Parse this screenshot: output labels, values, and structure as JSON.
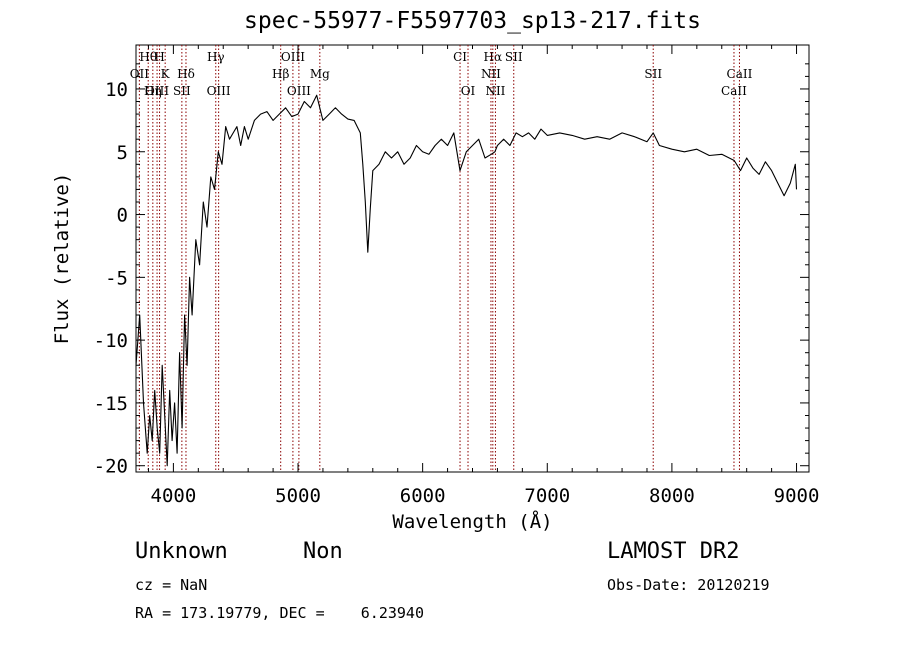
{
  "chart_data": {
    "type": "line",
    "title": "spec-55977-F5597703_sp13-217.fits",
    "xlabel": "Wavelength (Å)",
    "ylabel": "Flux (relative)",
    "xlim": [
      3700,
      9100
    ],
    "ylim": [
      -20.5,
      13.5
    ],
    "xticks": [
      4000,
      5000,
      6000,
      7000,
      8000,
      9000
    ],
    "yticks": [
      -20,
      -15,
      -10,
      -5,
      0,
      5,
      10
    ],
    "grid": false,
    "series": [
      {
        "x": [
          3700,
          3730,
          3760,
          3790,
          3810,
          3830,
          3850,
          3870,
          3890,
          3910,
          3930,
          3950,
          3970,
          3990,
          4010,
          4030,
          4050,
          4070,
          4090,
          4110,
          4130,
          4150,
          4180,
          4210,
          4240,
          4270,
          4300,
          4330,
          4360,
          4390,
          4420,
          4450,
          4480,
          4510,
          4540,
          4570,
          4600,
          4650,
          4700,
          4750,
          4800,
          4850,
          4900,
          4950,
          5000,
          5050,
          5100,
          5150,
          5200,
          5250,
          5300,
          5350,
          5400,
          5450,
          5500,
          5520,
          5540,
          5560,
          5580,
          5600,
          5650,
          5700,
          5750,
          5800,
          5850,
          5900,
          5950,
          6000,
          6050,
          6100,
          6150,
          6200,
          6250,
          6300,
          6350,
          6400,
          6450,
          6500,
          6550,
          6580,
          6600,
          6650,
          6700,
          6750,
          6800,
          6850,
          6900,
          6950,
          7000,
          7100,
          7200,
          7300,
          7400,
          7500,
          7600,
          7700,
          7800,
          7850,
          7900,
          8000,
          8100,
          8200,
          8300,
          8400,
          8500,
          8550,
          8600,
          8650,
          8700,
          8750,
          8800,
          8850,
          8900,
          8950,
          8990,
          9000
        ],
        "y": [
          -12,
          -8,
          -15,
          -19,
          -16,
          -18,
          -14,
          -17,
          -19,
          -12,
          -16,
          -20,
          -14,
          -18,
          -15,
          -19,
          -11,
          -17,
          -8,
          -12,
          -5,
          -8,
          -2,
          -4,
          1,
          -1,
          3,
          2,
          5,
          4,
          7,
          6,
          6.5,
          7,
          5.5,
          7,
          6,
          7.5,
          8,
          8.2,
          7.5,
          8,
          8.5,
          7.8,
          8,
          9,
          8.5,
          9.5,
          7.5,
          8,
          8.5,
          8,
          7.6,
          7.5,
          6.5,
          4,
          1,
          -3,
          0.5,
          3.5,
          4,
          5,
          4.5,
          5,
          4,
          4.5,
          5.5,
          5,
          4.8,
          5.5,
          6,
          5.5,
          6.5,
          3.5,
          5,
          5.5,
          6,
          4.5,
          4.8,
          5,
          5.5,
          6,
          5.5,
          6.5,
          6.2,
          6.5,
          6,
          6.8,
          6.3,
          6.5,
          6.3,
          6,
          6.2,
          6,
          6.5,
          6.2,
          5.8,
          6.5,
          5.5,
          5.2,
          5,
          5.2,
          4.7,
          4.8,
          4.3,
          3.5,
          4.5,
          3.7,
          3.2,
          4.2,
          3.5,
          2.5,
          1.5,
          2.5,
          4,
          2
        ]
      }
    ],
    "lines": [
      {
        "label": "Hθ",
        "x": 3798,
        "row": 0
      },
      {
        "label": "H",
        "x": 3889,
        "row": 0
      },
      {
        "label": "Hγ",
        "x": 4340,
        "row": 0
      },
      {
        "label": "OIII",
        "x": 4959,
        "row": 0
      },
      {
        "label": "CI",
        "x": 6300,
        "row": 0
      },
      {
        "label": "Hα",
        "x": 6563,
        "row": 0
      },
      {
        "label": "SII",
        "x": 6731,
        "row": 0
      },
      {
        "label": "OII",
        "x": 3727,
        "row": 1
      },
      {
        "label": "K",
        "x": 3934,
        "row": 1
      },
      {
        "label": "Hδ",
        "x": 4101,
        "row": 1
      },
      {
        "label": "Hβ",
        "x": 4861,
        "row": 1
      },
      {
        "label": "Mg",
        "x": 5175,
        "row": 1
      },
      {
        "label": "NII",
        "x": 6548,
        "row": 1
      },
      {
        "label": "SII",
        "x": 7850,
        "row": 1
      },
      {
        "label": "CaII",
        "x": 8542,
        "row": 1
      },
      {
        "label": "OIII",
        "x": 3869,
        "row": 2
      },
      {
        "label": "Hη",
        "x": 3835,
        "row": 2
      },
      {
        "label": "SII",
        "x": 4068,
        "row": 2
      },
      {
        "label": "OIII",
        "x": 4363,
        "row": 2
      },
      {
        "label": "OIII",
        "x": 5007,
        "row": 2
      },
      {
        "label": "OI",
        "x": 6364,
        "row": 2
      },
      {
        "label": "NII",
        "x": 6584,
        "row": 2
      },
      {
        "label": "CaII",
        "x": 8498,
        "row": 2
      }
    ],
    "line_color": "#8b0000"
  },
  "info": {
    "object_class": "Unknown",
    "subclass": "Non",
    "survey": "LAMOST DR2",
    "cz": "cz = NaN",
    "obs_date": "Obs-Date: 20120219",
    "coords": "RA = 173.19779, DEC =    6.23940"
  }
}
